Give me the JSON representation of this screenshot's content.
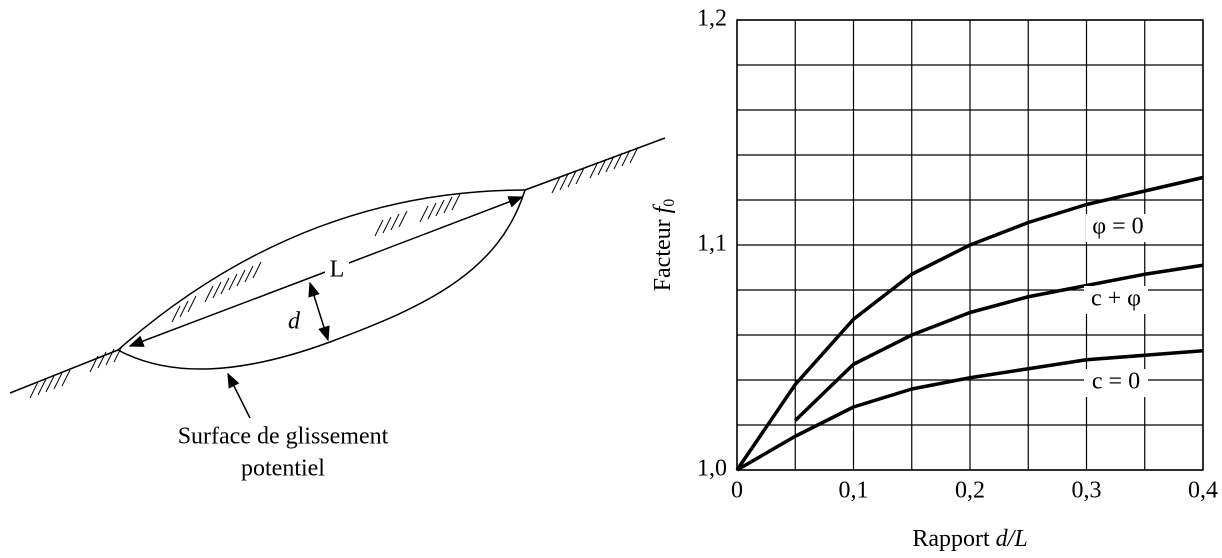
{
  "diagram": {
    "length_label": "L",
    "depth_label": "d",
    "surface_label": [
      "Surface de glissement",
      "potentiel"
    ]
  },
  "chart_data": {
    "type": "line",
    "ylabel": "Facteur",
    "ylabel_symbol": "f",
    "ylabel_subscript": "0",
    "xlabel": "Rapport",
    "xlabel_symbol": "d/L",
    "x": [
      0,
      0.05,
      0.1,
      0.15,
      0.2,
      0.25,
      0.3,
      0.35,
      0.4
    ],
    "series": [
      {
        "name": "φ = 0",
        "color": "#000000",
        "values": [
          1.0,
          1.038,
          1.067,
          1.087,
          1.1,
          1.11,
          1.118,
          1.124,
          1.13
        ]
      },
      {
        "name": "c + φ",
        "color": "#000000",
        "values": [
          null,
          1.022,
          1.047,
          1.06,
          1.07,
          1.077,
          1.082,
          1.087,
          1.091
        ]
      },
      {
        "name": "c = 0",
        "color": "#000000",
        "values": [
          1.0,
          1.015,
          1.028,
          1.036,
          1.041,
          1.045,
          1.049,
          1.051,
          1.053
        ]
      }
    ],
    "xlim": [
      0,
      0.4
    ],
    "ylim": [
      1.0,
      1.2
    ],
    "xticks": [
      0,
      {
        "value": 0.1,
        "label": "0,1"
      },
      {
        "value": 0.2,
        "label": "0,2"
      },
      {
        "value": 0.3,
        "label": "0,3"
      },
      {
        "value": 0.4,
        "label": "0,4"
      }
    ],
    "yticks": [
      {
        "value": 1.0,
        "label": "1,0"
      },
      {
        "value": 1.1,
        "label": "1,1"
      },
      {
        "value": 1.2,
        "label": "1,2"
      }
    ],
    "xgrid": [
      0.05,
      0.15,
      0.25,
      0.35
    ],
    "ygrid": [
      1.02,
      1.04,
      1.06,
      1.08,
      1.12,
      1.14,
      1.16,
      1.18
    ],
    "grid": true
  }
}
